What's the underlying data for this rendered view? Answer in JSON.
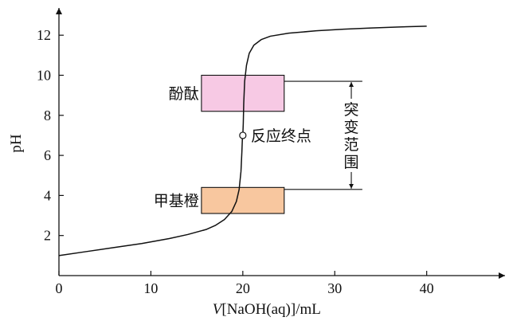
{
  "chart_data": {
    "type": "line",
    "xlabel_italic": "V",
    "xlabel_rest": "[NaOH(aq)]/mL",
    "ylabel": "pH",
    "xlim": [
      0,
      48
    ],
    "ylim": [
      0,
      13.2
    ],
    "x_ticks": [
      0,
      10,
      20,
      30,
      40
    ],
    "x_tick_labels": [
      "0",
      "10",
      "20",
      "30",
      "40"
    ],
    "y_ticks": [
      2,
      4,
      6,
      8,
      10,
      12
    ],
    "y_tick_labels": [
      "2",
      "4",
      "6",
      "8",
      "10",
      "12"
    ],
    "grid": false,
    "series": [
      {
        "x": [
          0,
          3,
          6,
          9,
          12,
          14,
          16,
          17,
          18,
          18.8,
          19.3,
          19.6,
          19.8,
          19.9,
          19.95,
          20,
          20.05,
          20.1,
          20.2,
          20.4,
          20.7,
          21.2,
          22,
          23,
          25,
          28,
          31,
          34,
          37,
          40
        ],
        "y": [
          1.0,
          1.2,
          1.4,
          1.6,
          1.85,
          2.05,
          2.3,
          2.5,
          2.8,
          3.2,
          3.7,
          4.3,
          5.2,
          6.2,
          6.8,
          7.0,
          7.6,
          8.6,
          9.7,
          10.5,
          11.1,
          11.5,
          11.78,
          11.95,
          12.1,
          12.22,
          12.3,
          12.36,
          12.41,
          12.45
        ]
      }
    ],
    "indicators": [
      {
        "label": "酚酞",
        "x_from": 15.5,
        "x_to": 24.5,
        "ph_low": 8.2,
        "ph_high": 10.0,
        "color": "#f7c9e4",
        "label_x": 15.4,
        "label_y": 9.1
      },
      {
        "label": "甲基橙",
        "x_from": 15.5,
        "x_to": 24.5,
        "ph_low": 3.1,
        "ph_high": 4.4,
        "color": "#f8c79f",
        "label_x": 15.4,
        "label_y": 3.75
      }
    ],
    "endpoint": {
      "x": 20,
      "y": 7.0,
      "label": "反应终点"
    },
    "jump_range": {
      "label_chars": [
        "突",
        "变",
        "范",
        "围"
      ],
      "ph_low": 4.3,
      "ph_high": 9.7,
      "x_line_end": 33,
      "x_arrow": 31.8
    }
  }
}
